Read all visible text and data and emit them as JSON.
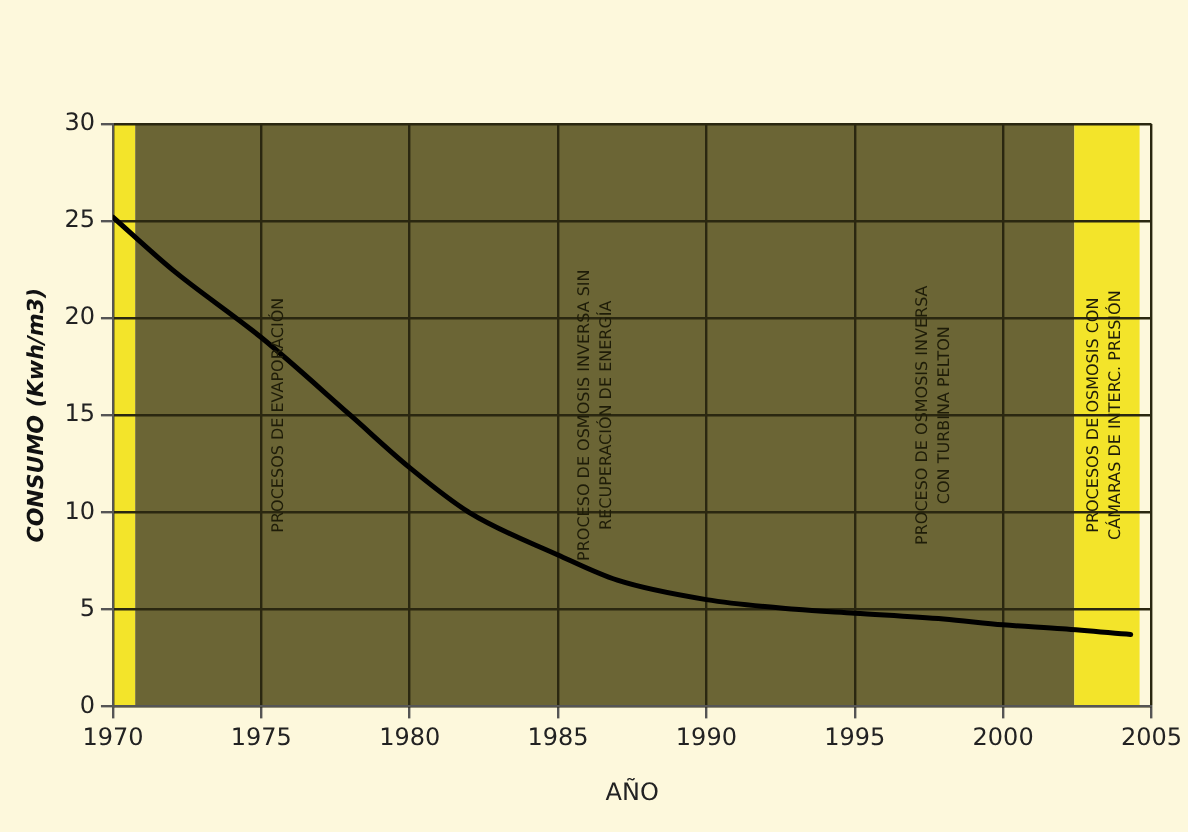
{
  "chart_data": {
    "type": "line",
    "xlabel": "AÑO",
    "ylabel": "CONSUMO (Kwh/m3)",
    "x": [
      1970,
      1972,
      1975,
      1978,
      1980,
      1982,
      1985,
      1987,
      1990,
      1993,
      1995,
      1998,
      2000,
      2002,
      2004.3
    ],
    "series": [
      {
        "color": "#000000",
        "values": [
          25.2,
          22.5,
          19,
          15,
          12.3,
          10,
          7.8,
          6.5,
          5.5,
          5,
          4.8,
          4.5,
          4.2,
          4,
          3.7
        ]
      }
    ],
    "xlim": [
      1970,
      2005
    ],
    "xticks": [
      1970,
      1975,
      1980,
      1985,
      1990,
      1995,
      2000,
      2005
    ],
    "ylim": [
      0,
      30
    ],
    "yticks": [
      0,
      5,
      10,
      15,
      20,
      25,
      30
    ],
    "grid": true,
    "marker": "none",
    "line_style": "solid",
    "bands": [
      {
        "axis": "x",
        "from": 1970,
        "to": 1970.75,
        "color": "#f3e42a"
      },
      {
        "axis": "x",
        "from": 1970.75,
        "to": 2002.4,
        "color": "#6b6535"
      },
      {
        "axis": "x",
        "from": 2002.4,
        "to": 2004.6,
        "color": "#f3e42a"
      }
    ],
    "annotations": [
      "PROCESOS DE EVAPORACIÓN",
      "PROCESO DE OSMOSIS INVERSA SIN\nRECUPERACIÓN DE ENERGÍA",
      "PROCESO DE OSMOSIS INVERSA\nCON TURBINA PELTON",
      "PROCESOS DE OSMOSIS CON\nCÁMARAS DE INTERC. PRESIÓN"
    ]
  }
}
